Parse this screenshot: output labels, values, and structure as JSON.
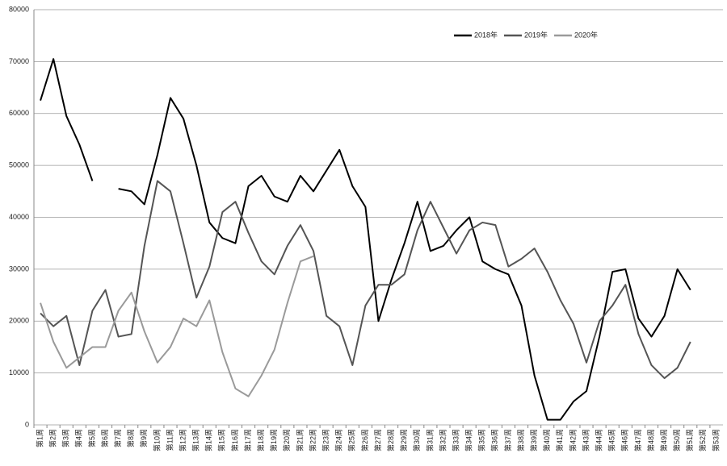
{
  "chart_data": {
    "type": "line",
    "categories": [
      "第1周",
      "第2周",
      "第3周",
      "第4周",
      "第5周",
      "第6周",
      "第7周",
      "第8周",
      "第9周",
      "第10周",
      "第11周",
      "第12周",
      "第13周",
      "第14周",
      "第15周",
      "第16周",
      "第17周",
      "第18周",
      "第19周",
      "第20周",
      "第21周",
      "第22周",
      "第23周",
      "第24周",
      "第25周",
      "第26周",
      "第27周",
      "第28周",
      "第29周",
      "第30周",
      "第31周",
      "第32周",
      "第33周",
      "第34周",
      "第35周",
      "第36周",
      "第37周",
      "第38周",
      "第39周",
      "第40周",
      "第41周",
      "第42周",
      "第43周",
      "第44周",
      "第45周",
      "第46周",
      "第47周",
      "第48周",
      "第49周",
      "第50周",
      "第51周",
      "第52周",
      "第53周"
    ],
    "series": [
      {
        "name": "2018年",
        "color": "#000000",
        "values": [
          62500,
          70500,
          59500,
          54000,
          47000,
          null,
          45500,
          45000,
          42500,
          52000,
          63000,
          59000,
          50000,
          39000,
          36000,
          35000,
          46000,
          48000,
          44000,
          43000,
          48000,
          45000,
          49000,
          53000,
          46000,
          42000,
          20000,
          28000,
          35000,
          43000,
          33500,
          34500,
          37500,
          40000,
          31500,
          30000,
          29000,
          23000,
          9500,
          1000,
          1000,
          4500,
          6500,
          17000,
          29500,
          30000,
          20500,
          17000,
          21000,
          30000,
          26000,
          null,
          null
        ]
      },
      {
        "name": "2019年",
        "color": "#555555",
        "values": [
          21500,
          19000,
          21000,
          11500,
          22000,
          26000,
          17000,
          17500,
          34500,
          47000,
          45000,
          35000,
          24500,
          30500,
          41000,
          43000,
          37000,
          31500,
          29000,
          34500,
          38500,
          33500,
          21000,
          19000,
          11500,
          23000,
          27000,
          27000,
          29000,
          37500,
          43000,
          38000,
          33000,
          37500,
          39000,
          38500,
          30500,
          32000,
          34000,
          29500,
          24000,
          19500,
          12000,
          20000,
          23000,
          27000,
          17500,
          11500,
          9000,
          11000,
          16000,
          null,
          null
        ]
      },
      {
        "name": "2020年",
        "color": "#9a9a9a",
        "values": [
          23500,
          16000,
          11000,
          13000,
          15000,
          15000,
          22000,
          25500,
          18000,
          12000,
          15000,
          20500,
          19000,
          24000,
          14000,
          7000,
          5500,
          9500,
          14500,
          23500,
          31500,
          32500,
          null,
          null,
          null,
          null,
          null,
          null,
          null,
          null,
          null,
          null,
          null,
          null,
          null,
          null,
          null,
          null,
          null,
          null,
          null,
          null,
          null,
          null,
          null,
          null,
          null,
          null,
          null,
          null,
          null,
          null,
          null
        ]
      }
    ],
    "ylim": [
      0,
      80000
    ],
    "yticks": [
      0,
      10000,
      20000,
      30000,
      40000,
      50000,
      60000,
      70000,
      80000
    ],
    "grid": true,
    "legend": "top-right"
  }
}
